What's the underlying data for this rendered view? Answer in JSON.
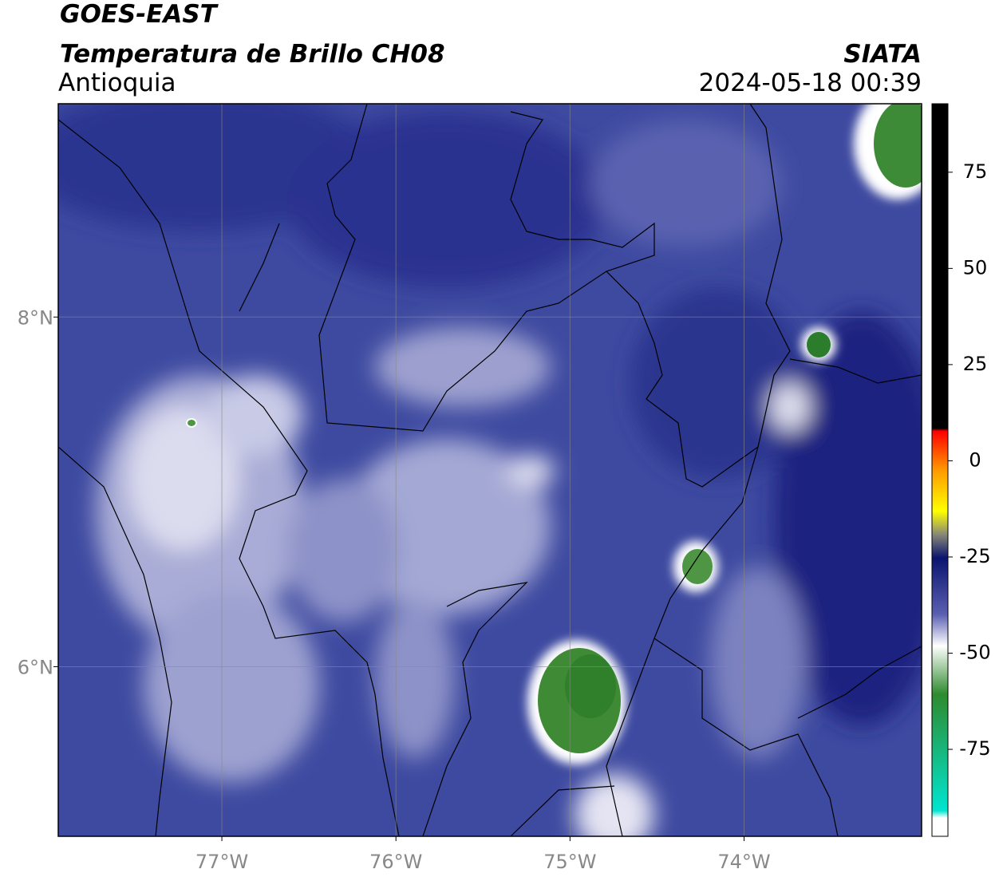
{
  "header": {
    "title": "GOES-EAST",
    "subtitle": "Temperatura de Brillo CH08",
    "region": "Antioquia",
    "source": "SIATA",
    "timestamp": "2024-05-18 00:39"
  },
  "map": {
    "xlim": [
      -77.94,
      -72.98
    ],
    "ylim": [
      5.03,
      9.22
    ],
    "xticks": [
      {
        "value": -77,
        "label": "77°W"
      },
      {
        "value": -76,
        "label": "76°W"
      },
      {
        "value": -75,
        "label": "75°W"
      },
      {
        "value": -74,
        "label": "74°W"
      }
    ],
    "yticks": [
      {
        "value": 8,
        "label": "8°N"
      },
      {
        "value": 6,
        "label": "6°N"
      }
    ],
    "grid": true
  },
  "colorbar": {
    "lim": [
      -97.6,
      92.8
    ],
    "ticks": [
      75,
      50,
      25,
      0,
      -25,
      -50,
      -75
    ]
  }
}
